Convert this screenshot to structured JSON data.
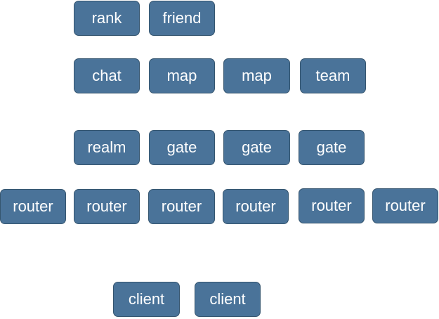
{
  "nodes": {
    "rank": "rank",
    "friend": "friend",
    "chat": "chat",
    "map_1": "map",
    "map_2": "map",
    "team": "team",
    "realm": "realm",
    "gate_1": "gate",
    "gate_2": "gate",
    "gate_3": "gate",
    "router_1": "router",
    "router_2": "router",
    "router_3": "router",
    "router_4": "router",
    "router_5": "router",
    "router_6": "router",
    "client_1": "client",
    "client_2": "client"
  },
  "colors": {
    "node_fill": "#4a7399",
    "node_border": "#35556f",
    "node_text": "#ffffff"
  }
}
